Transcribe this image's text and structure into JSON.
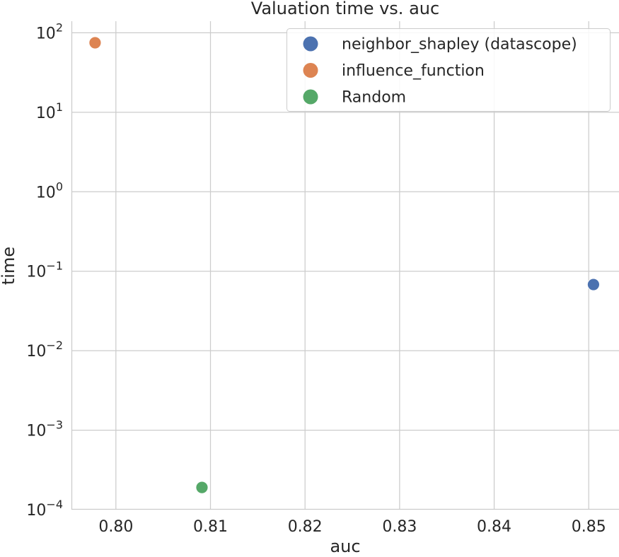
{
  "chart_data": {
    "type": "scatter",
    "title": "Valuation time vs. auc",
    "xlabel": "auc",
    "ylabel": "time",
    "xlim": [
      0.7953,
      0.8532
    ],
    "ylim": [
      0.0001,
      140
    ],
    "yscale": "log",
    "grid": true,
    "legend_position": "top-right",
    "x_ticks": [
      {
        "value": 0.8,
        "label": "0.80"
      },
      {
        "value": 0.81,
        "label": "0.81"
      },
      {
        "value": 0.82,
        "label": "0.82"
      },
      {
        "value": 0.83,
        "label": "0.83"
      },
      {
        "value": 0.84,
        "label": "0.84"
      },
      {
        "value": 0.85,
        "label": "0.85"
      }
    ],
    "y_ticks": [
      {
        "value": 100,
        "base": "10",
        "exp": "2"
      },
      {
        "value": 10,
        "base": "10",
        "exp": "1"
      },
      {
        "value": 1,
        "base": "10",
        "exp": "0"
      },
      {
        "value": 0.1,
        "base": "10",
        "exp": "−1"
      },
      {
        "value": 0.01,
        "base": "10",
        "exp": "−2"
      },
      {
        "value": 0.001,
        "base": "10",
        "exp": "−3"
      },
      {
        "value": 0.0001,
        "base": "10",
        "exp": "−4"
      }
    ],
    "series": [
      {
        "name": "neighbor_shapley (datascope)",
        "color": "#4c72b0",
        "points": [
          {
            "x": 0.8505,
            "y": 0.068
          }
        ]
      },
      {
        "name": "influence_function",
        "color": "#dd8452",
        "points": [
          {
            "x": 0.7978,
            "y": 75
          }
        ]
      },
      {
        "name": "Random",
        "color": "#55a868",
        "points": [
          {
            "x": 0.8091,
            "y": 0.00019
          }
        ]
      }
    ]
  }
}
